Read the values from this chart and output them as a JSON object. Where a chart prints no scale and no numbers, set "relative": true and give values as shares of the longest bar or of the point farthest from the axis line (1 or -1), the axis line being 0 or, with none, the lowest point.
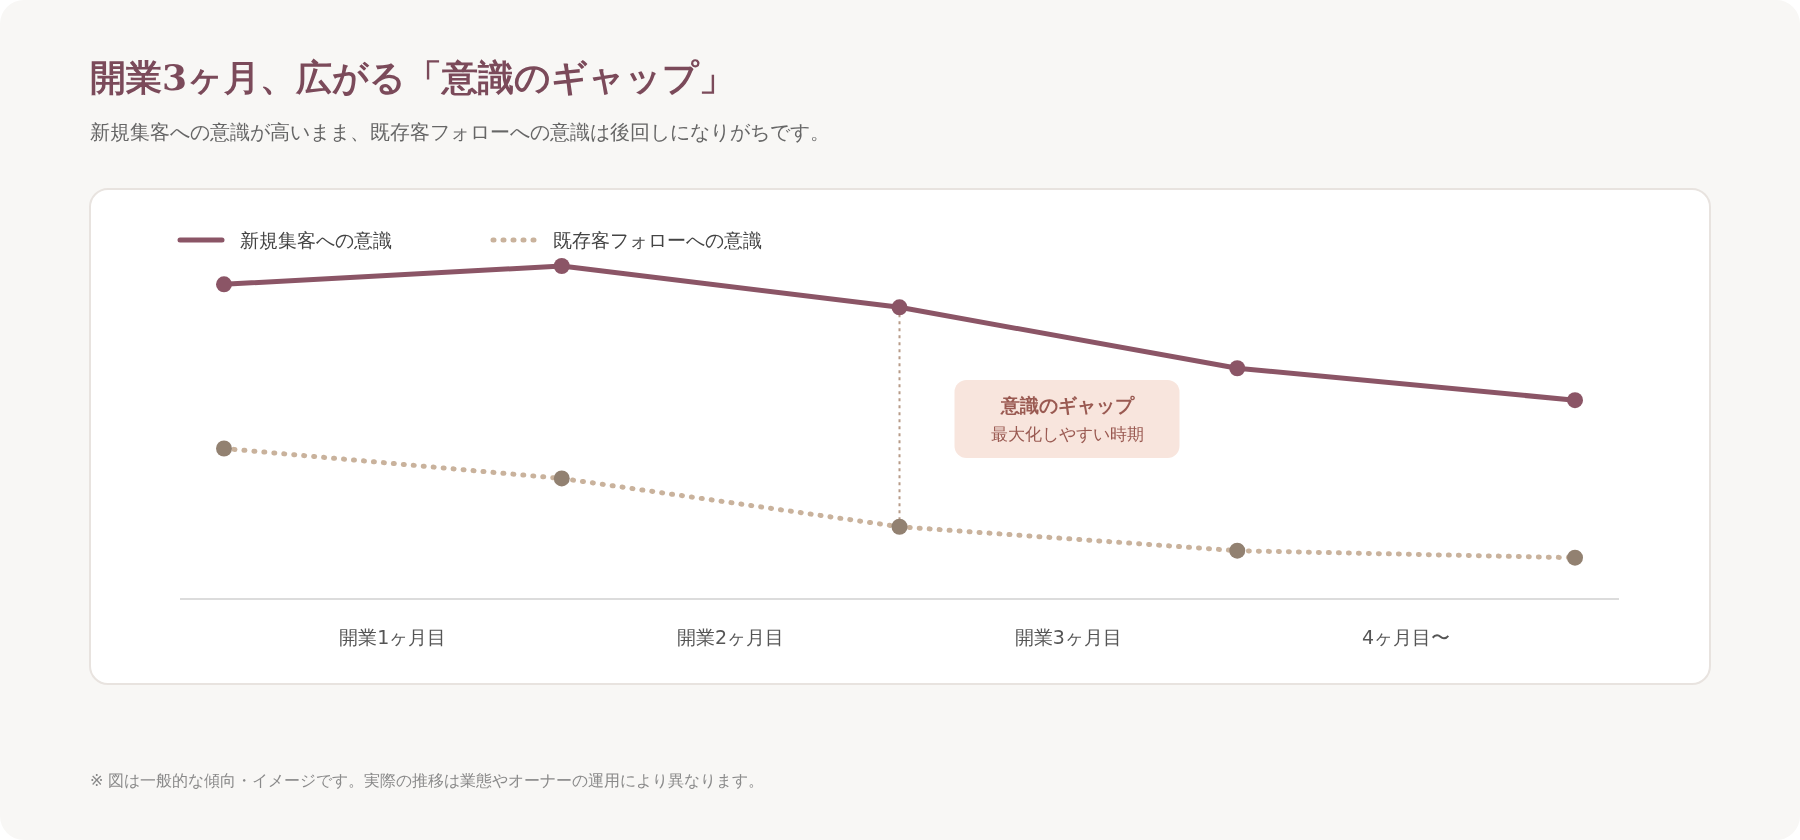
{
  "chart_data": {
    "type": "line",
    "title": "開業3ヶ月、広がる「意識のギャップ」",
    "subtitle": "新規集客への意識が高いまま、既存客フォローへの意識は後回しになりがちです。",
    "relative": true,
    "categories": [
      null,
      "開業1ヶ月目",
      null,
      "開業2ヶ月目",
      null,
      "開業3ヶ月目",
      null,
      "4ヶ月目〜",
      null
    ],
    "series": [
      {
        "name": "新規集客への意識",
        "color": "#8b5566",
        "values": [
          0.945,
          null,
          1,
          null,
          0.876,
          null,
          0.693,
          null,
          0.597
        ],
        "line_style": "solid"
      },
      {
        "name": "既存客フォローへの意識",
        "color": "#c9b29c",
        "values": [
          0.452,
          null,
          0.362,
          null,
          0.217,
          null,
          0.145,
          null,
          0.124
        ],
        "line_style": "dotted"
      }
    ],
    "marker": "circle",
    "legend": "top left",
    "annotations": [
      "意識のギャップ",
      "最大化しやすい時期",
      "※ 図は一般的な傾向・イメージです。実際の推移は業態やオーナーの運用により異なります。"
    ]
  }
}
